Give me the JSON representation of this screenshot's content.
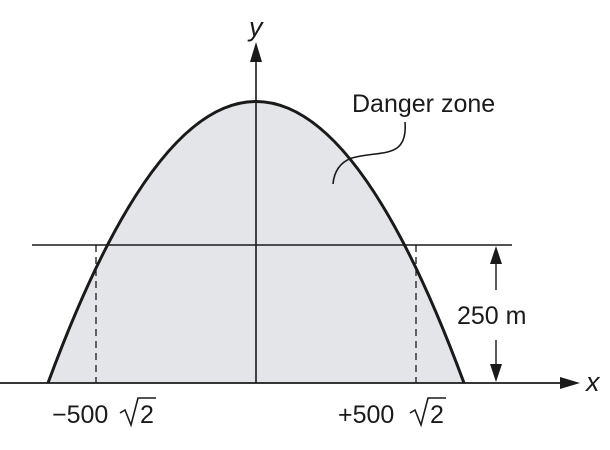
{
  "diagram": {
    "axis_x_label": "x",
    "axis_y_label": "y",
    "region_label": "Danger zone",
    "height_label": "250 m",
    "left_point_prefix": "−500",
    "left_point_radicand": "2",
    "right_point_prefix": "+500",
    "right_point_radicand": "2",
    "colors": {
      "region_fill": "#e4e5e8",
      "ink": "#1a1a1a",
      "background": "#ffffff"
    }
  }
}
